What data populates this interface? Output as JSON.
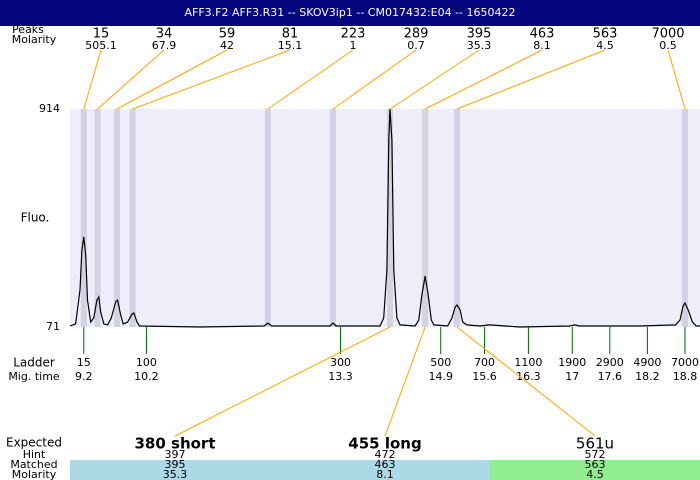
{
  "header": {
    "title": "AFF3.F2  AFF3.R31 -- SKOV3ip1 -- CM017432:E04 -- 1650422"
  },
  "chart_data": {
    "type": "line",
    "y_label": "Fluo.",
    "x": [
      8.98,
      9.07,
      9.14,
      9.17,
      9.2,
      9.23,
      9.26,
      9.31,
      9.36,
      9.41,
      9.44,
      9.47,
      9.52,
      9.58,
      9.64,
      9.71,
      9.74,
      9.79,
      9.83,
      9.9,
      9.97,
      10.0,
      10.05,
      10.09,
      11.05,
      12.08,
      12.14,
      12.2,
      13.13,
      13.18,
      13.23,
      13.93,
      13.99,
      14.04,
      14.07,
      14.09,
      14.12,
      14.15,
      14.2,
      14.25,
      14.49,
      14.55,
      14.6,
      14.65,
      14.7,
      14.75,
      14.79,
      15.01,
      15.08,
      15.13,
      15.16,
      15.21,
      15.25,
      15.32,
      15.52,
      15.68,
      16.16,
      16.96,
      17.04,
      17.12,
      18.08,
      18.65,
      18.72,
      18.77,
      18.8,
      18.85,
      18.92,
      18.98,
      19.04
    ],
    "series": [
      {
        "color": "#000000",
        "values": [
          75,
          83,
          214,
          369,
          419,
          349,
          175,
          90,
          106,
          175,
          187,
          129,
          83,
          79,
          106,
          168,
          175,
          117,
          83,
          90,
          121,
          125,
          90,
          75,
          71,
          75,
          86,
          75,
          75,
          86,
          75,
          75,
          106,
          291,
          794,
          914,
          794,
          291,
          106,
          79,
          75,
          98,
          195,
          268,
          195,
          98,
          79,
          75,
          106,
          148,
          156,
          137,
          90,
          79,
          75,
          79,
          71,
          75,
          79,
          75,
          75,
          79,
          98,
          152,
          164,
          137,
          90,
          75,
          75
        ]
      }
    ],
    "xlim": [
      8.98,
      19.04
    ],
    "ylim": [
      71,
      914
    ],
    "yticks": [
      71,
      914
    ],
    "peaks": {
      "label": "Peaks",
      "molarity_label": "Molarity",
      "color": "#ffa500",
      "band_color": "#d2d2e2",
      "sizes": [
        15,
        34,
        59,
        81,
        223,
        289,
        395,
        463,
        563,
        7000
      ],
      "molarity": [
        505.1,
        67.9,
        42,
        15.1,
        1,
        0.7,
        35.3,
        8.1,
        4.5,
        0.5
      ],
      "times": [
        9.2,
        9.42,
        9.73,
        9.98,
        12.14,
        13.18,
        14.09,
        14.65,
        15.16,
        18.8
      ]
    },
    "ladder": {
      "label": "Ladder",
      "time_label": "Mig. time",
      "color": "#006400",
      "sizes": [
        15,
        100,
        300,
        500,
        700,
        1100,
        1900,
        2900,
        4900,
        7000
      ],
      "times": [
        9.2,
        10.2,
        13.3,
        14.9,
        15.6,
        16.3,
        17,
        17.6,
        18.2,
        18.8
      ]
    },
    "expected": {
      "label": "Expected",
      "hint_label": "Hint",
      "matched_label": "Matched",
      "molarity_label": "Molarity",
      "names": [
        "380 short",
        "455 long",
        "561u"
      ],
      "hint": [
        397,
        472,
        572
      ],
      "matched": [
        395,
        463,
        563
      ],
      "molarity": [
        35.3,
        8.1,
        4.5
      ],
      "peak_times": [
        14.09,
        14.65,
        15.16
      ],
      "colors": [
        "#add8e6",
        "#add8e6",
        "#90ee90"
      ]
    }
  }
}
